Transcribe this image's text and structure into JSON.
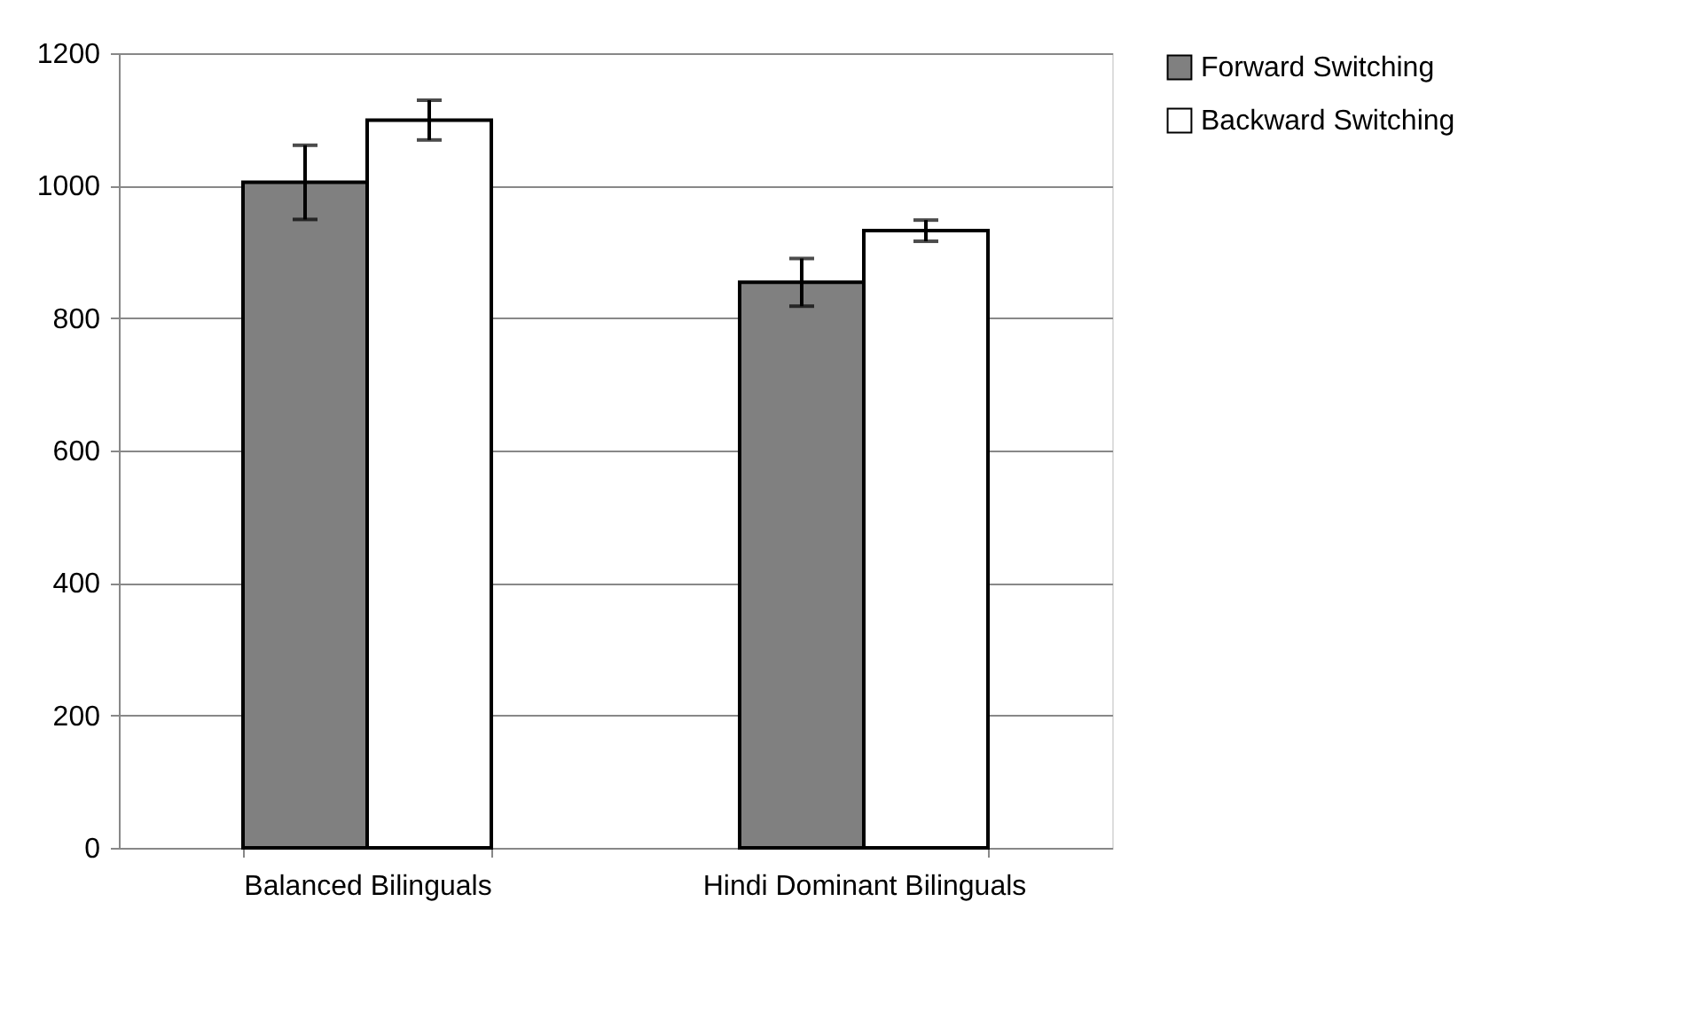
{
  "chart_data": {
    "type": "bar",
    "categories": [
      "Balanced Bilinguals",
      "Hindi Dominant Bilinguals"
    ],
    "series": [
      {
        "name": "Forward Switching",
        "color": "#808080",
        "values": [
          1005,
          854
        ],
        "errors": [
          56,
          36
        ]
      },
      {
        "name": "Backward Switching",
        "color": "#ffffff",
        "values": [
          1099,
          932
        ],
        "errors": [
          30,
          16
        ]
      }
    ],
    "ylim": [
      0,
      1200
    ],
    "yticks": [
      0,
      200,
      400,
      600,
      800,
      1000,
      1200
    ],
    "grid": "y",
    "legend": "right"
  }
}
